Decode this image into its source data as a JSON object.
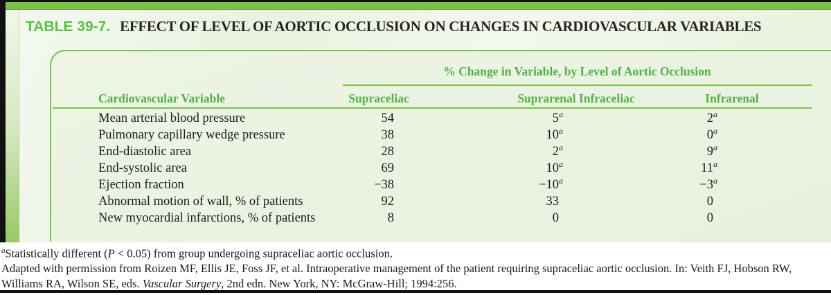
{
  "header": {
    "label": "TABLE 39-7.",
    "title": "EFFECT OF LEVEL OF AORTIC OCCLUSION ON CHANGES IN CARDIOVASCULAR VARIABLES"
  },
  "table": {
    "spanner": "% Change in Variable, by Level of Aortic Occlusion",
    "row_header": "Cardiovascular Variable",
    "columns": [
      "Supraceliac",
      "Suprarenal Infraceliac",
      "Infrarenal"
    ],
    "rows": [
      {
        "label": "Mean arterial blood pressure",
        "values": [
          {
            "v": "54",
            "sup": ""
          },
          {
            "v": "5",
            "sup": "a"
          },
          {
            "v": "2",
            "sup": "a"
          }
        ]
      },
      {
        "label": "Pulmonary capillary wedge pressure",
        "values": [
          {
            "v": "38",
            "sup": ""
          },
          {
            "v": "10",
            "sup": "a"
          },
          {
            "v": "0",
            "sup": "a"
          }
        ]
      },
      {
        "label": "End-diastolic area",
        "values": [
          {
            "v": "28",
            "sup": ""
          },
          {
            "v": "2",
            "sup": "a"
          },
          {
            "v": "9",
            "sup": "a"
          }
        ]
      },
      {
        "label": "End-systolic area",
        "values": [
          {
            "v": "69",
            "sup": ""
          },
          {
            "v": "10",
            "sup": "a"
          },
          {
            "v": "11",
            "sup": "a"
          }
        ]
      },
      {
        "label": "Ejection fraction",
        "values": [
          {
            "v": "−38",
            "sup": ""
          },
          {
            "v": "−10",
            "sup": "a"
          },
          {
            "v": "−3",
            "sup": "a"
          }
        ]
      },
      {
        "label": "Abnormal motion of wall, % of patients",
        "values": [
          {
            "v": "92",
            "sup": ""
          },
          {
            "v": "33",
            "sup": ""
          },
          {
            "v": "0",
            "sup": ""
          }
        ]
      },
      {
        "label": "New myocardial infarctions, % of patients",
        "values": [
          {
            "v": "8",
            "sup": ""
          },
          {
            "v": "0",
            "sup": ""
          },
          {
            "v": "0",
            "sup": ""
          }
        ]
      }
    ]
  },
  "footnotes": {
    "significance": {
      "marker": "a",
      "pre": "Statistically different (",
      "italic": "P",
      "post": " < 0.05) from group undergoing supraceliac aortic occlusion."
    },
    "source": {
      "pre": "Adapted with permission from Roizen MF, Ellis JE, Foss JF, et al. Intraoperative management of the patient requiring supraceliac aortic occlusion. In: Veith FJ, Hobson RW, Williams RA, Wilson SE, eds. ",
      "italic": "Vascular Surgery",
      "post": ", 2nd edn. New York, NY: McGraw-Hill; 1994:256."
    }
  },
  "colors": {
    "accent_green": "#7cc247",
    "heading_green": "#54b047",
    "label_green": "#5fbe46",
    "card_bg": "#ebf3e3",
    "frame_black": "#111111",
    "body_text": "#1c1c1c"
  }
}
